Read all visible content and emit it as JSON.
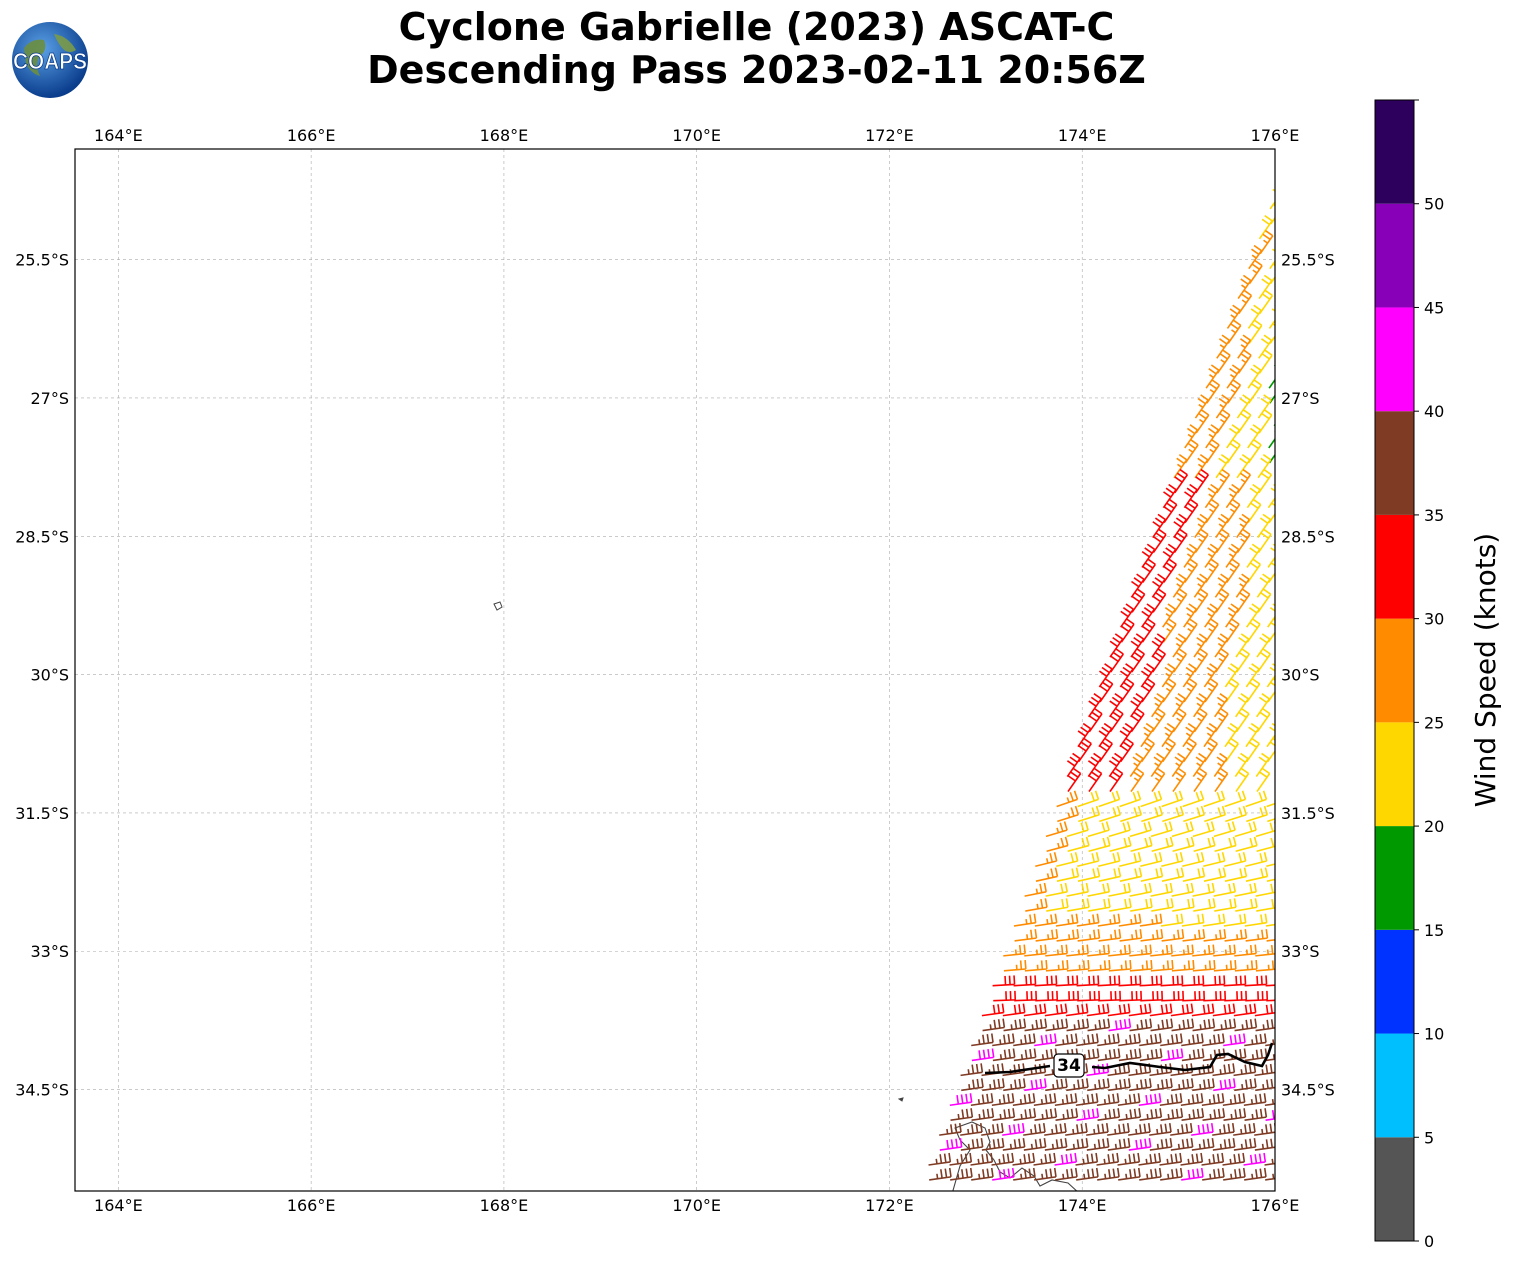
{
  "title": {
    "line1": "Cyclone Gabrielle (2023) ASCAT-C",
    "line2": "Descending Pass 2023-02-11 20:56Z"
  },
  "logo": {
    "text": "COAPS",
    "icon": "globe-icon"
  },
  "map": {
    "lon_range": [
      163.55,
      176.0
    ],
    "lat_range": [
      -35.6,
      -24.3
    ],
    "lon_ticks": [
      {
        "value": 164,
        "label": "164°E"
      },
      {
        "value": 166,
        "label": "166°E"
      },
      {
        "value": 168,
        "label": "168°E"
      },
      {
        "value": 170,
        "label": "170°E"
      },
      {
        "value": 172,
        "label": "172°E"
      },
      {
        "value": 174,
        "label": "174°E"
      },
      {
        "value": 176,
        "label": "176°E"
      }
    ],
    "lat_ticks": [
      {
        "value": -25.5,
        "label": "25.5°S"
      },
      {
        "value": -27,
        "label": "27°S"
      },
      {
        "value": -28.5,
        "label": "28.5°S"
      },
      {
        "value": -30,
        "label": "30°S"
      },
      {
        "value": -31.5,
        "label": "31.5°S"
      },
      {
        "value": -33,
        "label": "33°S"
      },
      {
        "value": -34.5,
        "label": "34.5°S"
      }
    ],
    "grid": true,
    "contour_label": "34"
  },
  "colorbar": {
    "label": "Wind Speed (knots)",
    "range": [
      0,
      55
    ],
    "ticks": [
      {
        "value": 0,
        "label": "0"
      },
      {
        "value": 5,
        "label": "5"
      },
      {
        "value": 10,
        "label": "10"
      },
      {
        "value": 15,
        "label": "15"
      },
      {
        "value": 20,
        "label": "20"
      },
      {
        "value": 25,
        "label": "25"
      },
      {
        "value": 30,
        "label": "30"
      },
      {
        "value": 35,
        "label": "35"
      },
      {
        "value": 40,
        "label": "40"
      },
      {
        "value": 45,
        "label": "45"
      },
      {
        "value": 50,
        "label": "50"
      }
    ],
    "bins": [
      {
        "from": 0,
        "to": 5,
        "color": "#555555"
      },
      {
        "from": 5,
        "to": 10,
        "color": "#00bfff"
      },
      {
        "from": 10,
        "to": 15,
        "color": "#0033ff"
      },
      {
        "from": 15,
        "to": 20,
        "color": "#009900"
      },
      {
        "from": 20,
        "to": 25,
        "color": "#ffd700"
      },
      {
        "from": 25,
        "to": 30,
        "color": "#ff8c00"
      },
      {
        "from": 30,
        "to": 35,
        "color": "#ff0000"
      },
      {
        "from": 35,
        "to": 40,
        "color": "#7f3b24"
      },
      {
        "from": 40,
        "to": 45,
        "color": "#ff00ff"
      },
      {
        "from": 45,
        "to": 50,
        "color": "#8800b8"
      },
      {
        "from": 50,
        "to": 55,
        "color": "#2e005e"
      }
    ]
  }
}
